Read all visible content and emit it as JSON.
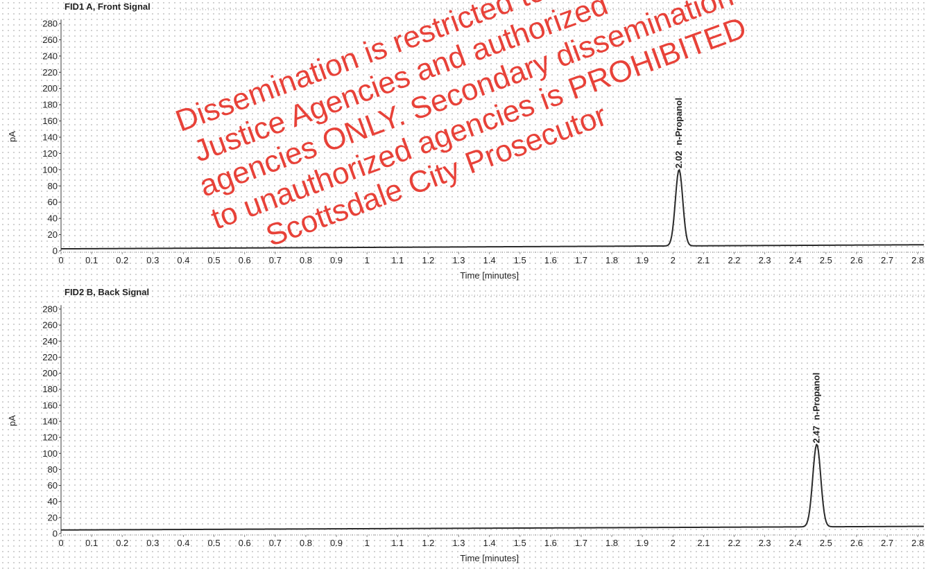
{
  "watermark": {
    "lines": [
      "Dissemination is restricted to Criminal",
      "Justice Agencies and authorized",
      "agencies ONLY. Secondary dissemination",
      "to unauthorized agencies is PROHIBITED",
      "Scottsdale City Prosecutor"
    ],
    "color": "#e62d23"
  },
  "colors": {
    "trace": "#2a2a2a",
    "axis": "#3a3a3a",
    "grid_dot": "#c4c4c4"
  },
  "chart_data": [
    {
      "type": "line",
      "title": "FID1 A, Front Signal",
      "xlabel": "Time [minutes]",
      "ylabel": "pA",
      "xlim": [
        0,
        2.82
      ],
      "ylim": [
        0,
        290
      ],
      "xticks": [
        "0",
        "0.1",
        "0.2",
        "0.3",
        "0.4",
        "0.5",
        "0.6",
        "0.7",
        "0.8",
        "0.9",
        "1",
        "1.1",
        "1.2",
        "1.3",
        "1.4",
        "1.5",
        "1.6",
        "1.7",
        "1.8",
        "1.9",
        "2",
        "2.1",
        "2.2",
        "2.3",
        "2.4",
        "2.5",
        "2.6",
        "2.7",
        "2.8"
      ],
      "yticks": [
        "0",
        "20",
        "40",
        "60",
        "80",
        "100",
        "120",
        "140",
        "160",
        "180",
        "200",
        "220",
        "240",
        "260",
        "280"
      ],
      "baseline": {
        "start": 2.5,
        "end": 7.5
      },
      "peak": {
        "time": 2.02,
        "height": 94,
        "sigma": 0.012,
        "retention_label": "2.02",
        "compound": "n-Propanol"
      },
      "grid": true
    },
    {
      "type": "line",
      "title": "FID2 B, Back Signal",
      "xlabel": "Time [minutes]",
      "ylabel": "pA",
      "xlim": [
        0,
        2.82
      ],
      "ylim": [
        0,
        290
      ],
      "xticks": [
        "0",
        "0.1",
        "0.2",
        "0.3",
        "0.4",
        "0.5",
        "0.6",
        "0.7",
        "0.8",
        "0.9",
        "1",
        "1.1",
        "1.2",
        "1.3",
        "1.4",
        "1.5",
        "1.6",
        "1.7",
        "1.8",
        "1.9",
        "2",
        "2.1",
        "2.2",
        "2.3",
        "2.4",
        "2.5",
        "2.6",
        "2.7",
        "2.8"
      ],
      "yticks": [
        "0",
        "20",
        "40",
        "60",
        "80",
        "100",
        "120",
        "140",
        "160",
        "180",
        "200",
        "220",
        "240",
        "260",
        "280"
      ],
      "baseline": {
        "start": 4.5,
        "end": 9
      },
      "peak": {
        "time": 2.47,
        "height": 103,
        "sigma": 0.013,
        "retention_label": "2.47",
        "compound": "n-Propanol"
      },
      "grid": true
    }
  ]
}
